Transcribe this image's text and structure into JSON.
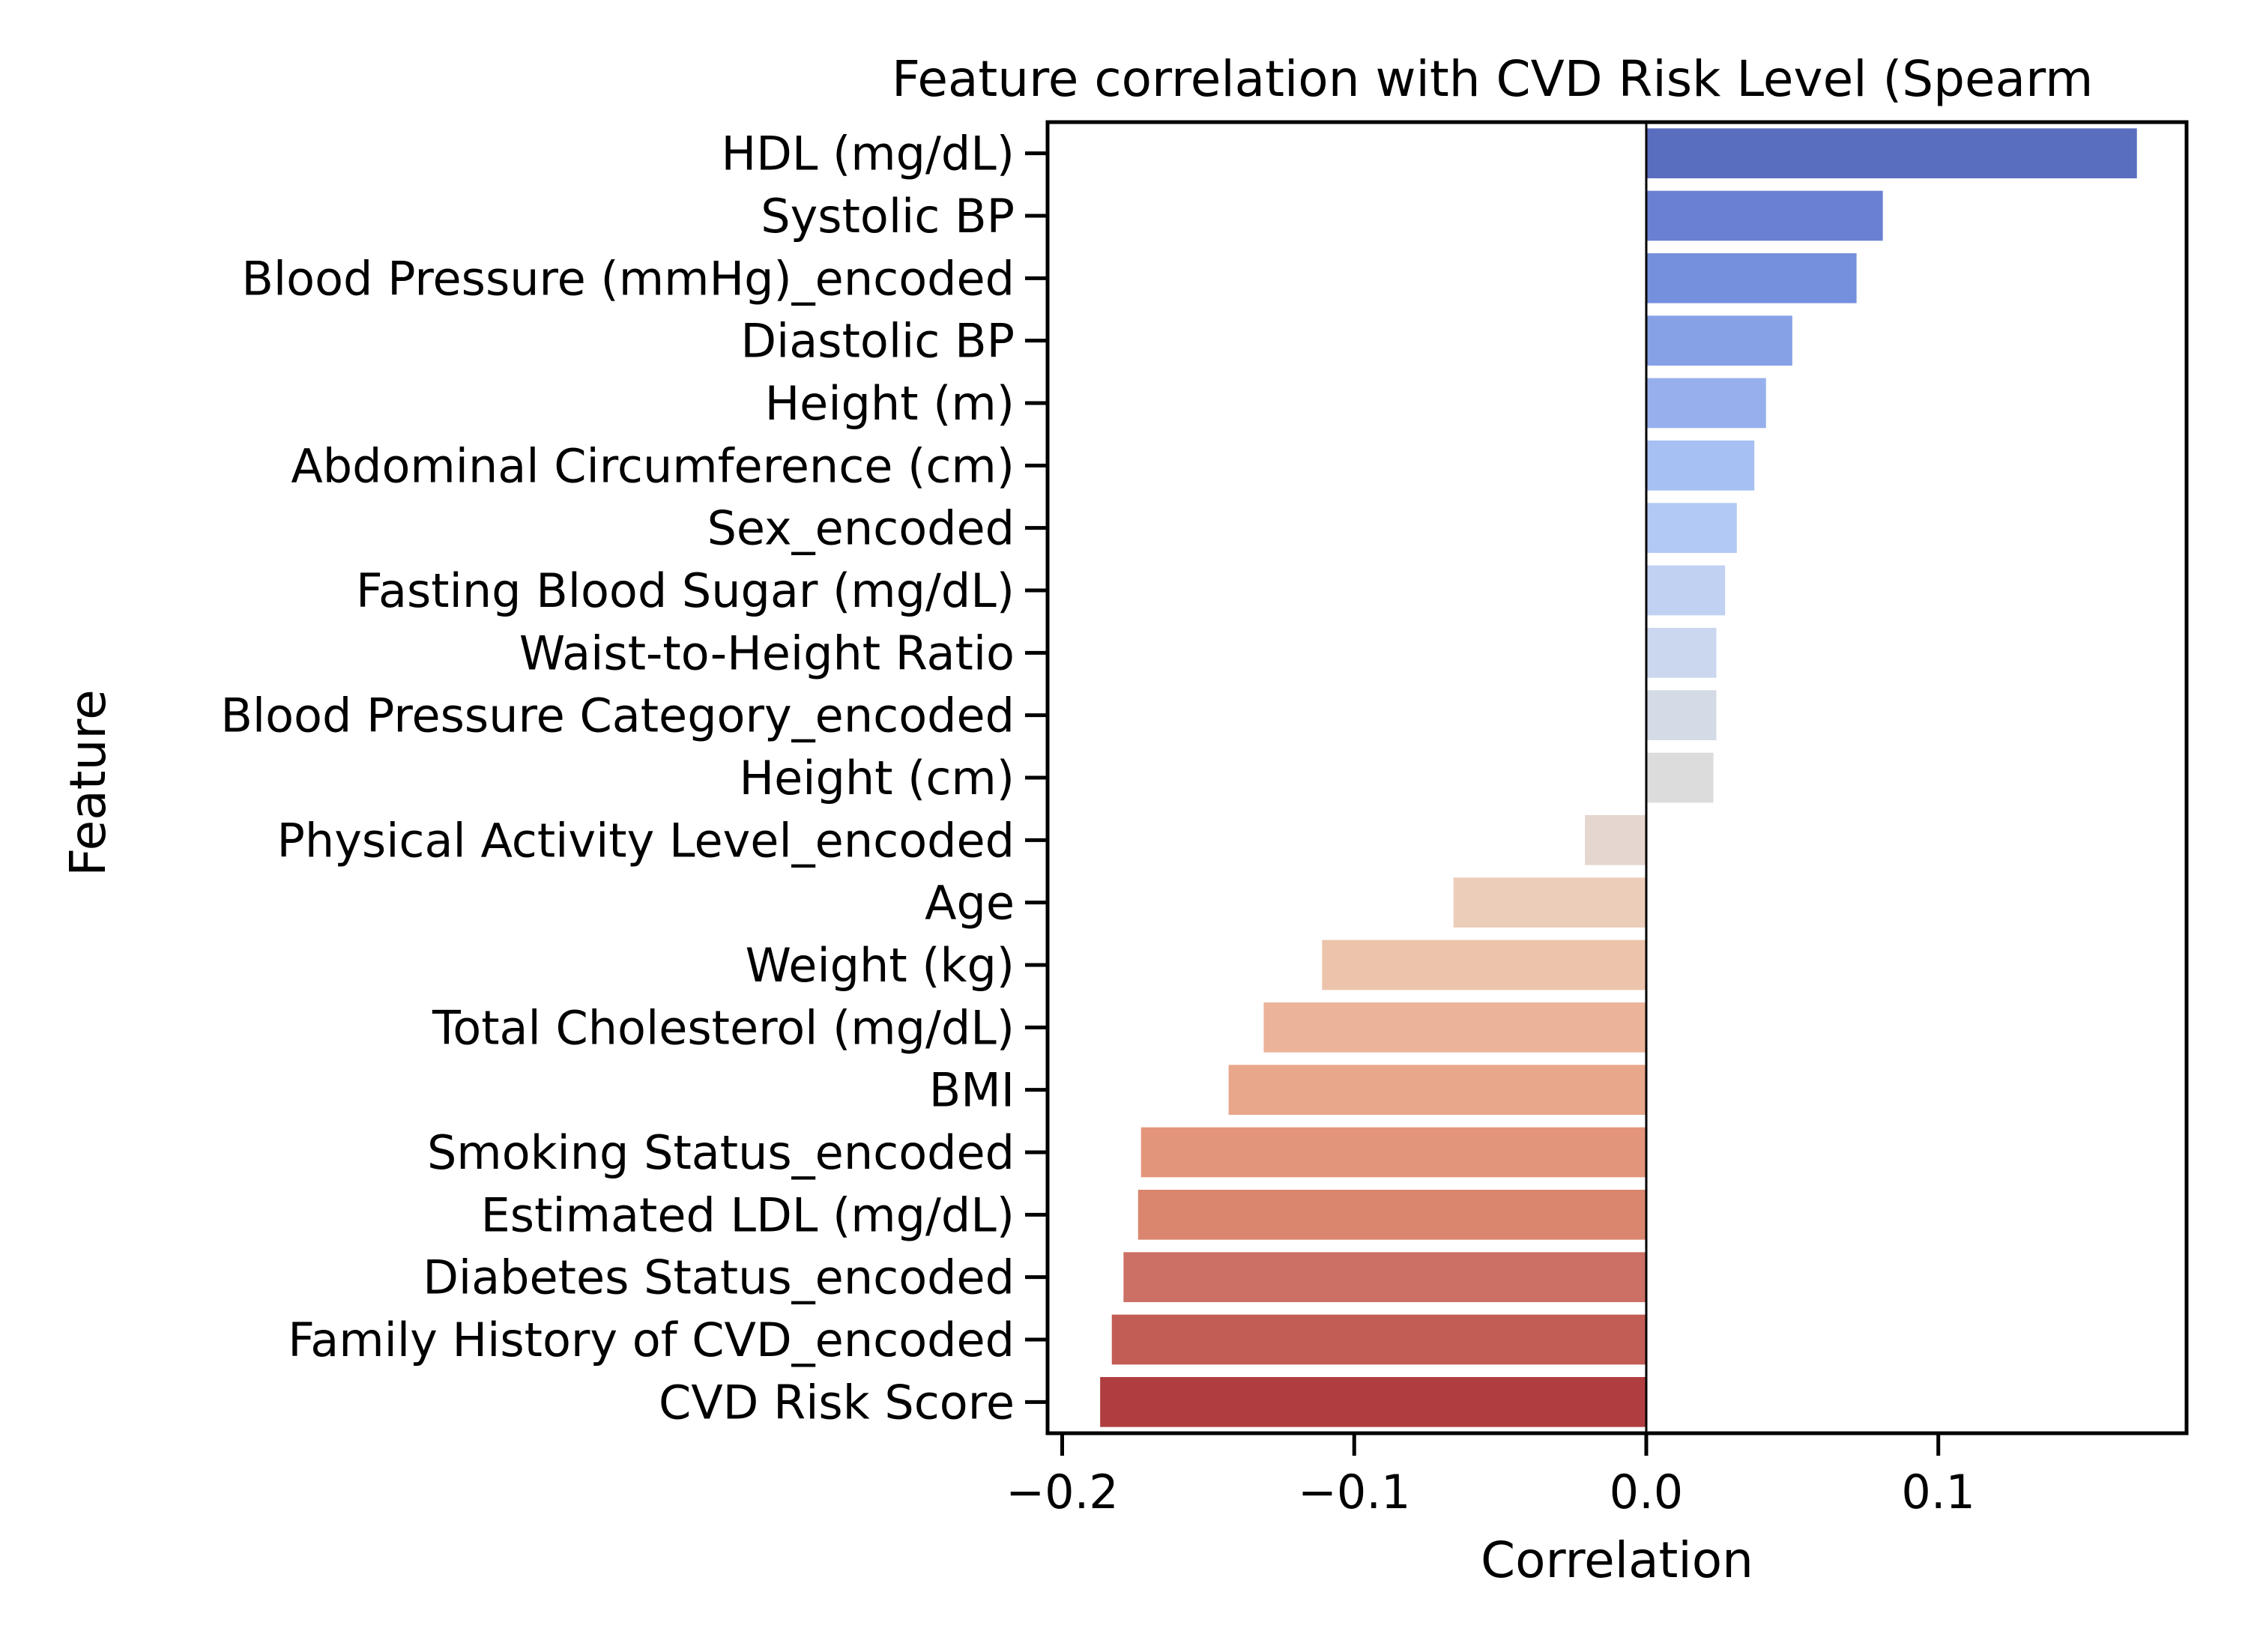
{
  "chart_data": {
    "type": "bar",
    "orientation": "horizontal",
    "title": "Feature correlation with CVD Risk Level (Spearm",
    "xlabel": "Correlation",
    "ylabel": "Feature",
    "xlim": [
      -0.205,
      0.185
    ],
    "xticks": [
      {
        "value": -0.2,
        "label": "−0.2"
      },
      {
        "value": -0.1,
        "label": "−0.1"
      },
      {
        "value": 0.0,
        "label": "0.0"
      },
      {
        "value": 0.1,
        "label": "0.1"
      }
    ],
    "grid": false,
    "zero_line": true,
    "categories": [
      "HDL (mg/dL)",
      "Systolic BP",
      "Blood Pressure (mmHg)_encoded",
      "Diastolic BP",
      "Height (m)",
      "Abdominal Circumference (cm)",
      "Sex_encoded",
      "Fasting Blood Sugar (mg/dL)",
      "Waist-to-Height Ratio",
      "Blood Pressure Category_encoded",
      "Height (cm)",
      "Physical Activity Level_encoded",
      "Age",
      "Weight (kg)",
      "Total Cholesterol (mg/dL)",
      "BMI",
      "Smoking Status_encoded",
      "Estimated LDL (mg/dL)",
      "Diabetes Status_encoded",
      "Family History of CVD_encoded",
      "CVD Risk Score"
    ],
    "values": [
      0.168,
      0.081,
      0.072,
      0.05,
      0.041,
      0.037,
      0.031,
      0.027,
      0.024,
      0.024,
      0.023,
      -0.021,
      -0.066,
      -0.111,
      -0.131,
      -0.143,
      -0.173,
      -0.174,
      -0.179,
      -0.183,
      -0.187
    ],
    "colors": [
      "#5a6ebf",
      "#6a80d2",
      "#7590dc",
      "#86a1e5",
      "#97b0ed",
      "#a6c0f3",
      "#b2c8f5",
      "#c0d1f2",
      "#cad7ef",
      "#d4dbe6",
      "#dcdcdc",
      "#e5d6cf",
      "#eccdb9",
      "#ecc3ab",
      "#ebb49a",
      "#e8a68a",
      "#e3957b",
      "#da866f",
      "#cc6f64",
      "#c15d55",
      "#b03e40"
    ]
  }
}
